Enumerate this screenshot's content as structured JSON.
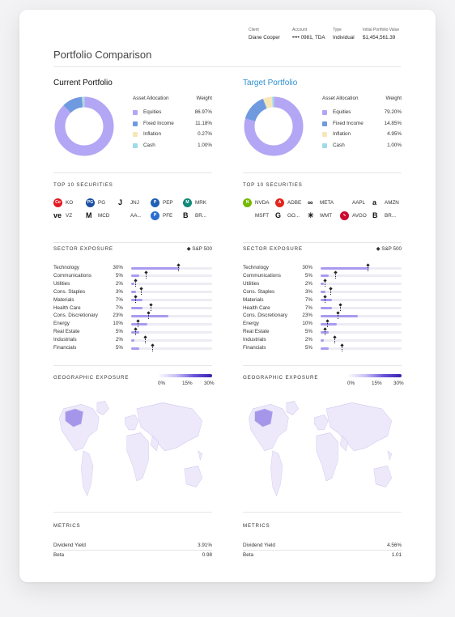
{
  "client": {
    "labels": [
      "Client",
      "Account",
      "Type",
      "Initial Portfolio Value"
    ],
    "values": [
      "Diane Cooper",
      "•••• 0981, TDA",
      "Individual",
      "$1,454,561.39"
    ]
  },
  "page_title": "Portfolio Comparison",
  "benchmark_label": "S&P 500",
  "section_labels": {
    "top10": "TOP 10 SECURITIES",
    "sector": "SECTOR EXPOSURE",
    "geo": "GEOGRAPHIC EXPOSURE",
    "metrics": "METRICS"
  },
  "alloc_headers": {
    "left": "Asset Allocation",
    "right": "Weight"
  },
  "alloc_colors": [
    "#b3a6f4",
    "#6f9ae0",
    "#f6e7b8",
    "#9fdbe8"
  ],
  "geo_colors": {
    "land": "#ede9fb",
    "highlight": "#a696ea"
  },
  "portfolios": [
    {
      "title": "Current Portfolio",
      "allocation": [
        {
          "label": "Equities",
          "weight": "86.97%",
          "value": 86.97
        },
        {
          "label": "Fixed Income",
          "weight": "11.18%",
          "value": 11.18
        },
        {
          "label": "Inflation",
          "weight": "0.27%",
          "value": 0.27
        },
        {
          "label": "Cash",
          "weight": "1.00%",
          "value": 1.0
        }
      ],
      "securities": [
        {
          "ticker": "KO",
          "icon": "coca-cola-logo",
          "color": "#e21a23",
          "glyph": "Co"
        },
        {
          "ticker": "PG",
          "icon": "pg-logo",
          "color": "#1b4fa3",
          "glyph": "PG"
        },
        {
          "ticker": "JNJ",
          "icon": "jnj-logo",
          "color": "#ffffff",
          "glyph": "J"
        },
        {
          "ticker": "PEP",
          "icon": "pepsi-logo",
          "color": "#1f5fb5",
          "glyph": "P"
        },
        {
          "ticker": "MRK",
          "icon": "merck-logo",
          "color": "#0f8a78",
          "glyph": "M"
        },
        {
          "ticker": "VZ",
          "icon": "verizon-logo",
          "color": "#ffffff",
          "glyph": "ve"
        },
        {
          "ticker": "MCD",
          "icon": "mcdonalds-logo",
          "color": "#ffffff",
          "glyph": "M"
        },
        {
          "ticker": "AA...",
          "icon": "apple-logo",
          "color": "#ffffff",
          "glyph": ""
        },
        {
          "ticker": "PFE",
          "icon": "pfizer-logo",
          "color": "#2a6fcf",
          "glyph": "P"
        },
        {
          "ticker": "BR...",
          "icon": "brk-logo",
          "color": "#ffffff",
          "glyph": "B"
        }
      ],
      "sectors": [
        {
          "name": "Technology",
          "pct": "30%",
          "value": 30,
          "benchmark": 29
        },
        {
          "name": "Communications",
          "pct": "5%",
          "value": 5,
          "benchmark": 9
        },
        {
          "name": "Utilities",
          "pct": "2%",
          "value": 2,
          "benchmark": 2.5
        },
        {
          "name": "Cons. Staples",
          "pct": "3%",
          "value": 3,
          "benchmark": 6
        },
        {
          "name": "Materials",
          "pct": "7%",
          "value": 7,
          "benchmark": 2.5
        },
        {
          "name": "Health Care",
          "pct": "7%",
          "value": 7,
          "benchmark": 12
        },
        {
          "name": "Cons. Discretionary",
          "pct": "23%",
          "value": 23,
          "benchmark": 10.5
        },
        {
          "name": "Energy",
          "pct": "10%",
          "value": 10,
          "benchmark": 4
        },
        {
          "name": "Real Estate",
          "pct": "5%",
          "value": 5,
          "benchmark": 2.5
        },
        {
          "name": "Industrials",
          "pct": "2%",
          "value": 2,
          "benchmark": 8.5
        },
        {
          "name": "Financials",
          "pct": "5%",
          "value": 5,
          "benchmark": 13
        }
      ],
      "geo_ticks": [
        "0%",
        "15%",
        "30%"
      ],
      "metrics": [
        {
          "label": "Dividend Yield",
          "value": "3.91%"
        },
        {
          "label": "Beta",
          "value": "0.98"
        }
      ]
    },
    {
      "title": "Target Portfolio",
      "allocation": [
        {
          "label": "Equities",
          "weight": "79.20%",
          "value": 79.2
        },
        {
          "label": "Fixed Income",
          "weight": "14.85%",
          "value": 14.85
        },
        {
          "label": "Inflation",
          "weight": "4.95%",
          "value": 4.95
        },
        {
          "label": "Cash",
          "weight": "1.00%",
          "value": 1.0
        }
      ],
      "securities": [
        {
          "ticker": "NVDA",
          "icon": "nvidia-logo",
          "color": "#76b900",
          "glyph": "N"
        },
        {
          "ticker": "ADBE",
          "icon": "adobe-logo",
          "color": "#e1251b",
          "glyph": "A"
        },
        {
          "ticker": "META",
          "icon": "meta-logo",
          "color": "#ffffff",
          "glyph": "∞"
        },
        {
          "ticker": "AAPL",
          "icon": "apple-logo",
          "color": "#ffffff",
          "glyph": ""
        },
        {
          "ticker": "AMZN",
          "icon": "amazon-logo",
          "color": "#ffffff",
          "glyph": "a"
        },
        {
          "ticker": "MSFT",
          "icon": "microsoft-logo",
          "color": "#ffffff",
          "glyph": ""
        },
        {
          "ticker": "GO...",
          "icon": "google-logo",
          "color": "#ffffff",
          "glyph": "G"
        },
        {
          "ticker": "WMT",
          "icon": "walmart-logo",
          "color": "#ffffff",
          "glyph": "✳"
        },
        {
          "ticker": "AVGO",
          "icon": "broadcom-logo",
          "color": "#cc092f",
          "glyph": "∿"
        },
        {
          "ticker": "BR...",
          "icon": "brk-logo",
          "color": "#ffffff",
          "glyph": "B"
        }
      ],
      "sectors": [
        {
          "name": "Technology",
          "pct": "30%",
          "value": 30,
          "benchmark": 29
        },
        {
          "name": "Communications",
          "pct": "5%",
          "value": 5,
          "benchmark": 9
        },
        {
          "name": "Utilities",
          "pct": "2%",
          "value": 2,
          "benchmark": 2.5
        },
        {
          "name": "Cons. Staples",
          "pct": "3%",
          "value": 3,
          "benchmark": 6
        },
        {
          "name": "Materials",
          "pct": "7%",
          "value": 7,
          "benchmark": 2.5
        },
        {
          "name": "Health Care",
          "pct": "7%",
          "value": 7,
          "benchmark": 12
        },
        {
          "name": "Cons. Discretionary",
          "pct": "23%",
          "value": 23,
          "benchmark": 10.5
        },
        {
          "name": "Energy",
          "pct": "10%",
          "value": 10,
          "benchmark": 4
        },
        {
          "name": "Real Estate",
          "pct": "5%",
          "value": 5,
          "benchmark": 2.5
        },
        {
          "name": "Industrials",
          "pct": "2%",
          "value": 2,
          "benchmark": 8.5
        },
        {
          "name": "Financials",
          "pct": "5%",
          "value": 5,
          "benchmark": 13
        }
      ],
      "geo_ticks": [
        "0%",
        "15%",
        "30%"
      ],
      "metrics": [
        {
          "label": "Dividend Yield",
          "value": "4.56%"
        },
        {
          "label": "Beta",
          "value": "1.01"
        }
      ]
    }
  ]
}
